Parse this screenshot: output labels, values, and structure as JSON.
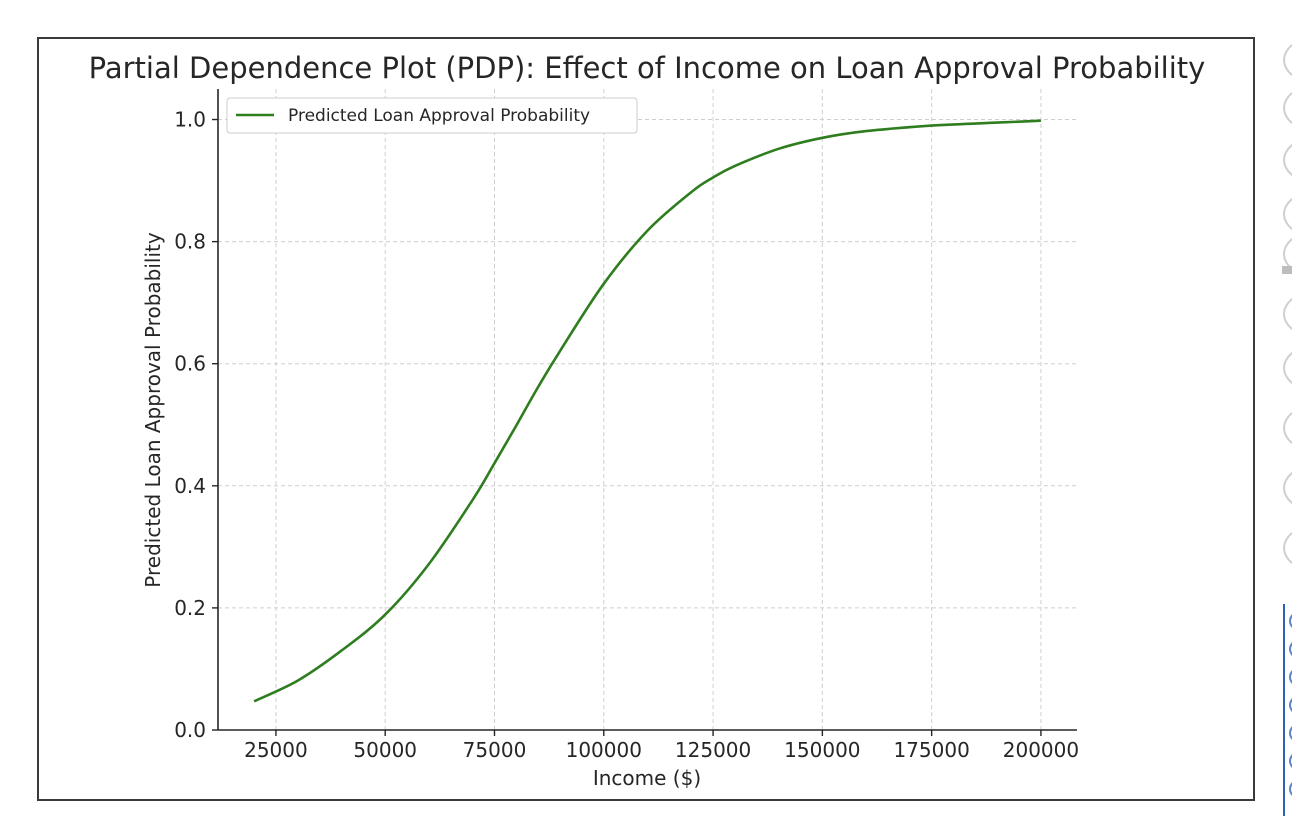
{
  "chart_data": {
    "type": "line",
    "title": "Partial Dependence Plot (PDP): Effect of Income on Loan Approval Probability",
    "xlabel": "Income ($)",
    "ylabel": "Predicted Loan Approval Probability",
    "xlim": [
      11750,
      208250
    ],
    "ylim": [
      0,
      1.05
    ],
    "xticks": [
      25000,
      50000,
      75000,
      100000,
      125000,
      150000,
      175000,
      200000
    ],
    "xtick_labels": [
      "25000",
      "50000",
      "75000",
      "100000",
      "125000",
      "150000",
      "175000",
      "200000"
    ],
    "yticks": [
      0,
      0.2,
      0.4,
      0.6,
      0.8,
      1.0
    ],
    "ytick_labels": [
      "0.0",
      "0.2",
      "0.4",
      "0.6",
      "0.8",
      "1.0"
    ],
    "grid": true,
    "legend_position": "top-left",
    "series": [
      {
        "name": "Predicted Loan Approval Probability",
        "color": "#2e7d1e",
        "x": [
          20000,
          30000,
          40000,
          50000,
          60000,
          70000,
          75000,
          80000,
          85000,
          90000,
          100000,
          110000,
          120000,
          125000,
          130000,
          140000,
          150000,
          160000,
          175000,
          190000,
          200000
        ],
        "y": [
          0.047,
          0.081,
          0.13,
          0.189,
          0.272,
          0.377,
          0.437,
          0.499,
          0.562,
          0.621,
          0.731,
          0.818,
          0.881,
          0.905,
          0.924,
          0.952,
          0.97,
          0.981,
          0.99,
          0.995,
          0.998
        ]
      }
    ]
  }
}
